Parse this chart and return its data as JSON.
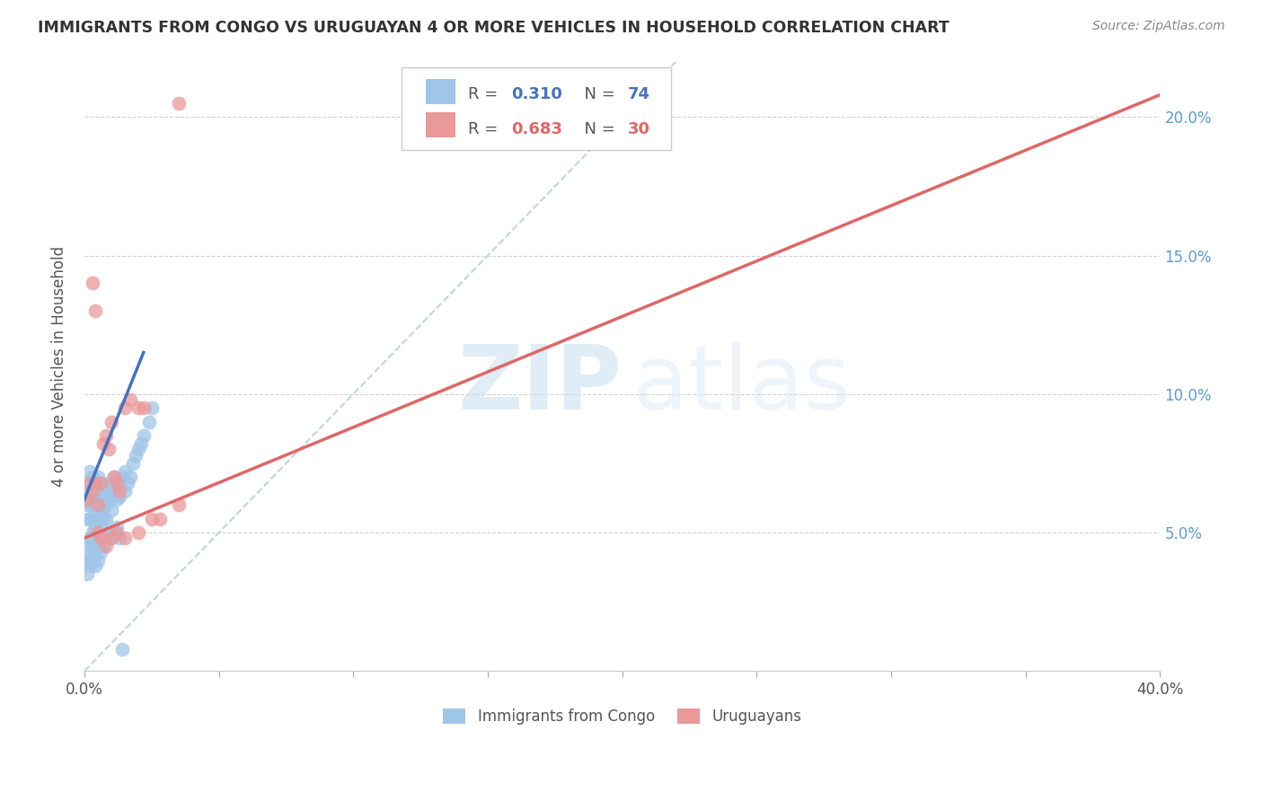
{
  "title": "IMMIGRANTS FROM CONGO VS URUGUAYAN 4 OR MORE VEHICLES IN HOUSEHOLD CORRELATION CHART",
  "source": "Source: ZipAtlas.com",
  "ylabel": "4 or more Vehicles in Household",
  "xlim": [
    0.0,
    0.4
  ],
  "ylim": [
    0.0,
    0.22
  ],
  "xticks": [
    0.0,
    0.05,
    0.1,
    0.15,
    0.2,
    0.25,
    0.3,
    0.35,
    0.4
  ],
  "xticklabels": [
    "0.0%",
    "",
    "",
    "",
    "",
    "",
    "",
    "",
    "40.0%"
  ],
  "yticks": [
    0.0,
    0.05,
    0.1,
    0.15,
    0.2
  ],
  "yticklabels_right": [
    "",
    "5.0%",
    "10.0%",
    "15.0%",
    "20.0%"
  ],
  "legend_r_blue": "0.310",
  "legend_n_blue": "74",
  "legend_r_pink": "0.683",
  "legend_n_pink": "30",
  "legend_label_blue": "Immigrants from Congo",
  "legend_label_pink": "Uruguayans",
  "color_blue": "#9fc5e8",
  "color_pink": "#ea9999",
  "color_blue_dark": "#4472c4",
  "color_pink_dark": "#e06666",
  "color_dashed": "#b7cfe8",
  "background_color": "#ffffff",
  "watermark_zip": "ZIP",
  "watermark_atlas": "atlas"
}
